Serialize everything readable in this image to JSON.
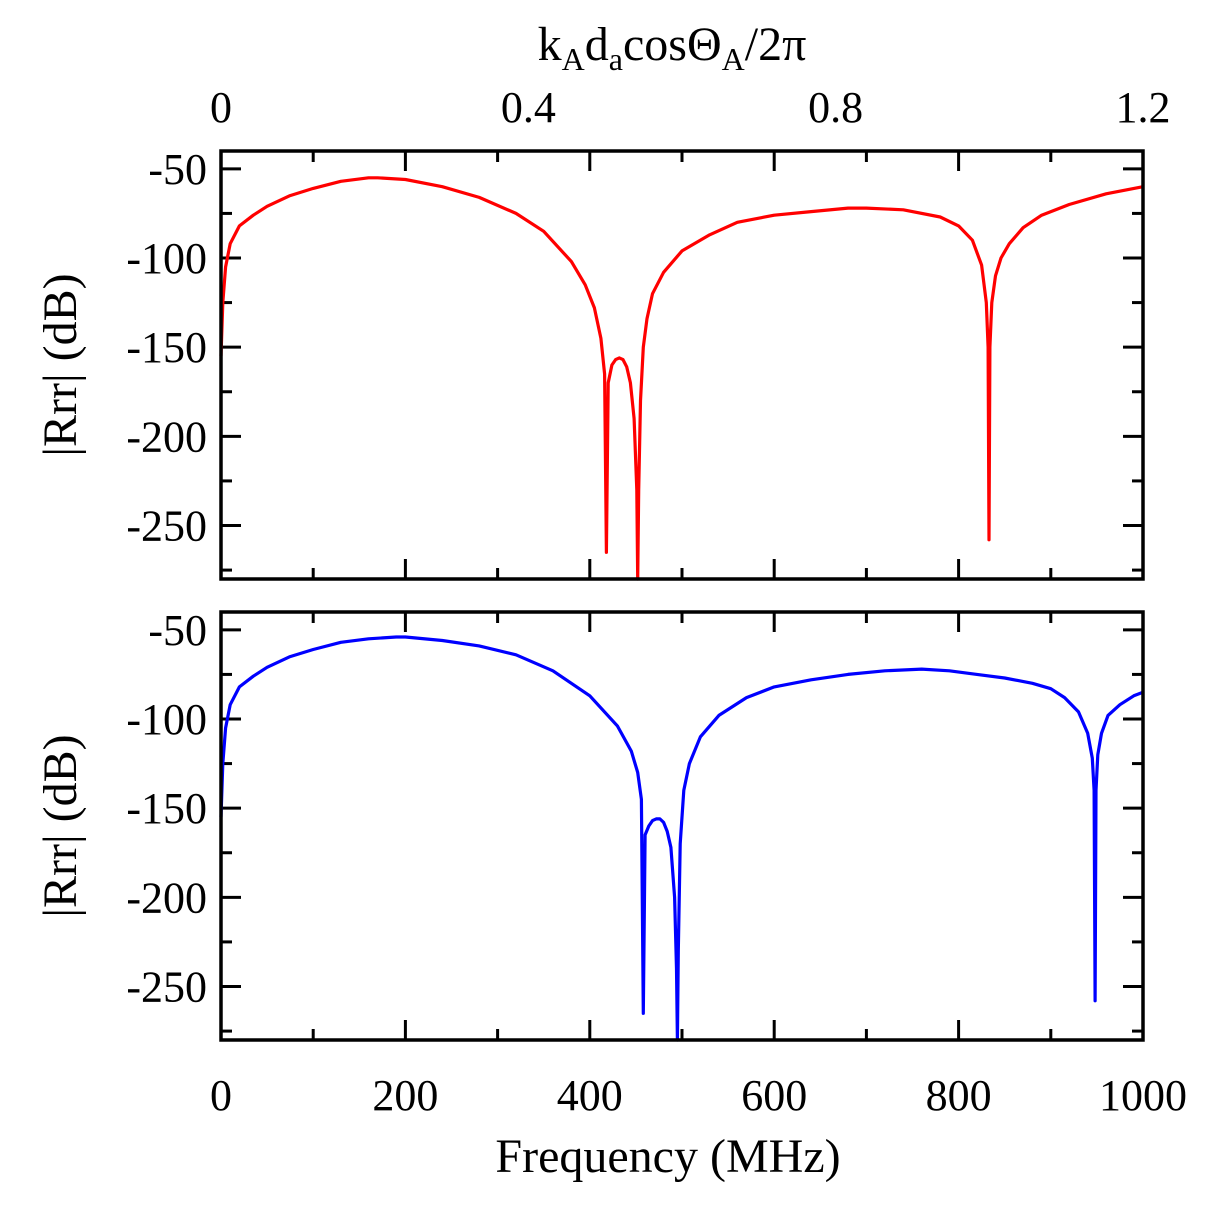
{
  "chart_data": [
    {
      "type": "line",
      "panel": "top",
      "ylabel": "|Rrr| (dB)",
      "ylim": [
        -280,
        -40
      ],
      "yticks": [
        -50,
        -100,
        -150,
        -200,
        -250
      ],
      "ytick_labels": [
        "-50",
        "-100",
        "-150",
        "-200",
        "-250"
      ],
      "xlim": [
        0,
        1000
      ],
      "xlabel_top": "k_A d_a cos Θ_A / 2π",
      "xlabel_top_parts": [
        "k",
        "A",
        "d",
        "a",
        "cosΘ",
        "A",
        "/2π"
      ],
      "top_xlim": [
        0,
        1.2
      ],
      "top_xticks": [
        0,
        0.4,
        0.8,
        1.2
      ],
      "top_xtick_labels": [
        "0",
        "0.4",
        "0.8",
        "1.2"
      ],
      "series": [
        {
          "name": "top",
          "color": "#ff0000",
          "x": [
            0,
            2,
            5,
            10,
            20,
            35,
            50,
            75,
            100,
            130,
            160,
            170,
            200,
            240,
            280,
            320,
            350,
            380,
            395,
            405,
            412,
            416,
            418,
            420,
            424,
            428,
            432,
            436,
            440,
            444,
            448,
            451,
            452,
            453,
            455,
            458,
            462,
            468,
            480,
            500,
            530,
            560,
            600,
            640,
            680,
            700,
            740,
            780,
            800,
            815,
            825,
            830,
            832,
            833,
            834,
            836,
            840,
            846,
            855,
            870,
            890,
            920,
            960,
            1000
          ],
          "y": [
            -155,
            -125,
            -105,
            -92,
            -82,
            -76,
            -71,
            -65,
            -61,
            -57,
            -55,
            -55,
            -56,
            -60,
            -66,
            -75,
            -85,
            -102,
            -115,
            -128,
            -145,
            -165,
            -265,
            -170,
            -160,
            -157,
            -156,
            -157,
            -161,
            -170,
            -190,
            -230,
            -280,
            -230,
            -180,
            -150,
            -134,
            -120,
            -108,
            -96,
            -87,
            -80,
            -76,
            -74,
            -72,
            -72,
            -73,
            -77,
            -82,
            -90,
            -104,
            -125,
            -150,
            -258,
            -150,
            -125,
            -110,
            -100,
            -92,
            -83,
            -76,
            -70,
            -64,
            -60
          ]
        }
      ]
    },
    {
      "type": "line",
      "panel": "bottom",
      "ylabel": "|Rrr| (dB)",
      "ylim": [
        -280,
        -40
      ],
      "yticks": [
        -50,
        -100,
        -150,
        -200,
        -250
      ],
      "ytick_labels": [
        "-50",
        "-100",
        "-150",
        "-200",
        "-250"
      ],
      "xlim": [
        0,
        1000
      ],
      "xticks": [
        0,
        200,
        400,
        600,
        800,
        1000
      ],
      "xtick_labels": [
        "0",
        "200",
        "400",
        "600",
        "800",
        "1000"
      ],
      "xlabel": "Frequency (MHz)",
      "series": [
        {
          "name": "bottom",
          "color": "#0000ff",
          "x": [
            0,
            2,
            5,
            10,
            20,
            35,
            50,
            75,
            100,
            130,
            160,
            190,
            200,
            240,
            280,
            320,
            360,
            400,
            430,
            445,
            452,
            456,
            458,
            460,
            464,
            468,
            472,
            476,
            480,
            484,
            488,
            492,
            494,
            495,
            496,
            498,
            502,
            508,
            520,
            540,
            570,
            600,
            640,
            680,
            720,
            760,
            790,
            820,
            850,
            880,
            900,
            915,
            930,
            940,
            945,
            947,
            948,
            949,
            951,
            955,
            962,
            975,
            990,
            1000
          ],
          "y": [
            -155,
            -125,
            -105,
            -92,
            -82,
            -76,
            -71,
            -65,
            -61,
            -57,
            -55,
            -54,
            -54,
            -56,
            -59,
            -64,
            -73,
            -87,
            -104,
            -118,
            -130,
            -145,
            -265,
            -165,
            -160,
            -157,
            -156,
            -156,
            -158,
            -163,
            -172,
            -200,
            -240,
            -280,
            -230,
            -170,
            -140,
            -125,
            -110,
            -98,
            -88,
            -82,
            -78,
            -75,
            -73,
            -72,
            -73,
            -75,
            -77,
            -80,
            -83,
            -88,
            -96,
            -108,
            -122,
            -140,
            -258,
            -140,
            -120,
            -108,
            -98,
            -92,
            -87,
            -85
          ]
        }
      ]
    }
  ]
}
